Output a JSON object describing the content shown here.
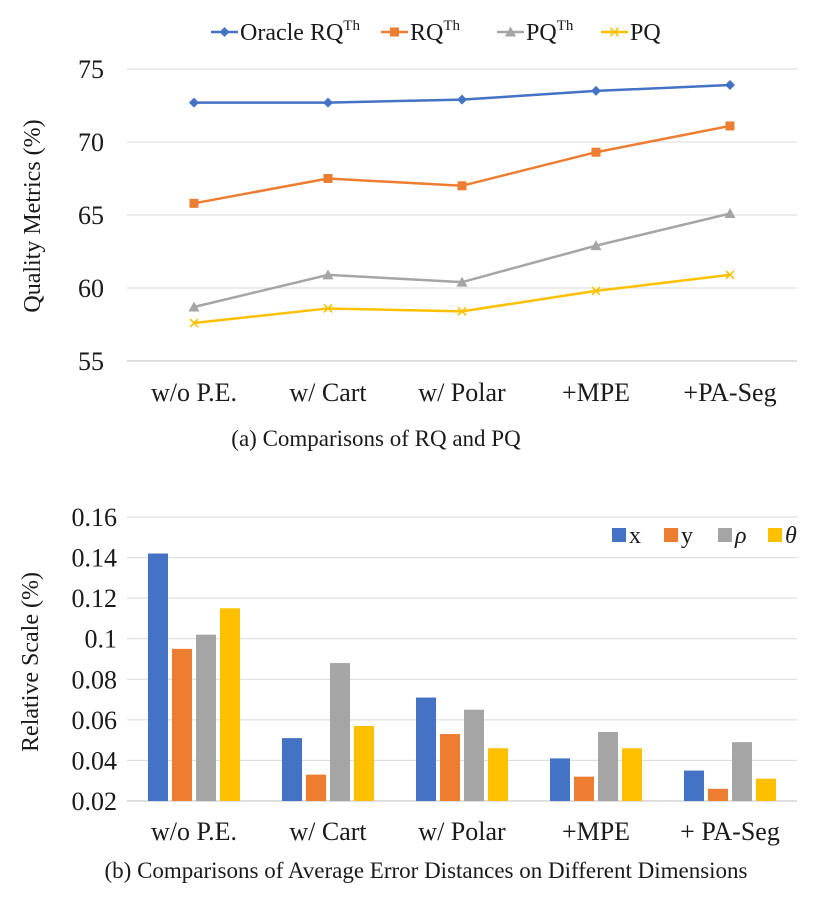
{
  "chart_data": [
    {
      "type": "line",
      "title": "",
      "caption": "(a) Comparisons of RQ and PQ",
      "ylabel": "Quality Metrics (%)",
      "xlabel": "",
      "ylim": [
        55,
        75
      ],
      "yticks": [
        "55",
        "60",
        "65",
        "70",
        "75"
      ],
      "ytick_values": [
        55,
        60,
        65,
        70,
        75
      ],
      "grid": true,
      "legend_position": "top",
      "categories": [
        "w/o P.E.",
        "w/ Cart",
        "w/ Polar",
        "+MPE",
        "+PA-Seg"
      ],
      "series": [
        {
          "name": "Oracle RQ",
          "sup": "Th",
          "color": "#4472C4",
          "marker": "diamond",
          "values": [
            72.7,
            72.7,
            72.9,
            73.5,
            73.9
          ]
        },
        {
          "name": "RQ",
          "sup": "Th",
          "color": "#ED7D31",
          "marker": "square",
          "values": [
            65.8,
            67.5,
            67.0,
            69.3,
            71.1
          ]
        },
        {
          "name": "PQ",
          "sup": "Th",
          "color": "#A5A5A5",
          "marker": "triangle",
          "values": [
            58.7,
            60.9,
            60.4,
            62.9,
            65.1
          ]
        },
        {
          "name": "PQ",
          "sup": "",
          "color": "#FFC000",
          "marker": "x",
          "values": [
            57.6,
            58.6,
            58.4,
            59.8,
            60.9
          ]
        }
      ]
    },
    {
      "type": "bar",
      "title": "",
      "caption": "(b) Comparisons of Average Error Distances on Different Dimensions",
      "ylabel": "Relative Scale (%)",
      "xlabel": "",
      "ylim": [
        0.02,
        0.16
      ],
      "yticks": [
        "0.02",
        "0.04",
        "0.06",
        "0.08",
        "0.1",
        "0.12",
        "0.14",
        "0.16"
      ],
      "ytick_values": [
        0.02,
        0.04,
        0.06,
        0.08,
        0.1,
        0.12,
        0.14,
        0.16
      ],
      "grid": true,
      "legend_position": "top-right",
      "categories": [
        "w/o P.E.",
        "w/ Cart",
        "w/ Polar",
        "+MPE",
        "+ PA-Seg"
      ],
      "series": [
        {
          "name": "x",
          "color": "#4472C4",
          "values": [
            0.142,
            0.051,
            0.071,
            0.041,
            0.035
          ]
        },
        {
          "name": "y",
          "color": "#ED7D31",
          "values": [
            0.095,
            0.033,
            0.053,
            0.032,
            0.026
          ]
        },
        {
          "name": "ρ",
          "color": "#A5A5A5",
          "values": [
            0.102,
            0.088,
            0.065,
            0.054,
            0.049
          ]
        },
        {
          "name": "θ",
          "color": "#FFC000",
          "values": [
            0.115,
            0.057,
            0.046,
            0.046,
            0.031
          ]
        }
      ]
    }
  ]
}
